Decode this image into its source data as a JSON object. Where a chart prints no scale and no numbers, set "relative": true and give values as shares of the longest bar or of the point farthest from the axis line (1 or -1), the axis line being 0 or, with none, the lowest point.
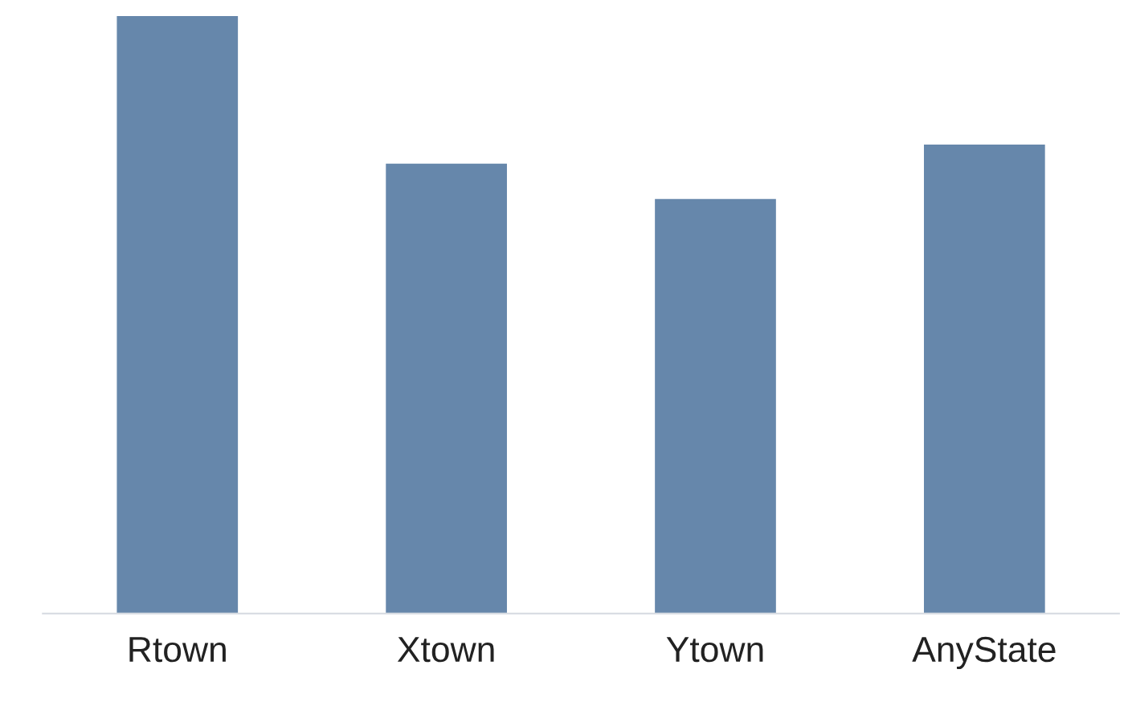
{
  "chart_data": {
    "type": "bar",
    "relative": true,
    "categories": [
      "Rtown",
      "Xtown",
      "Ytown",
      "AnyState"
    ],
    "values": [
      1,
      0.753,
      0.694,
      0.785
    ],
    "color": "#6687ab",
    "grid": false,
    "legend": false
  }
}
